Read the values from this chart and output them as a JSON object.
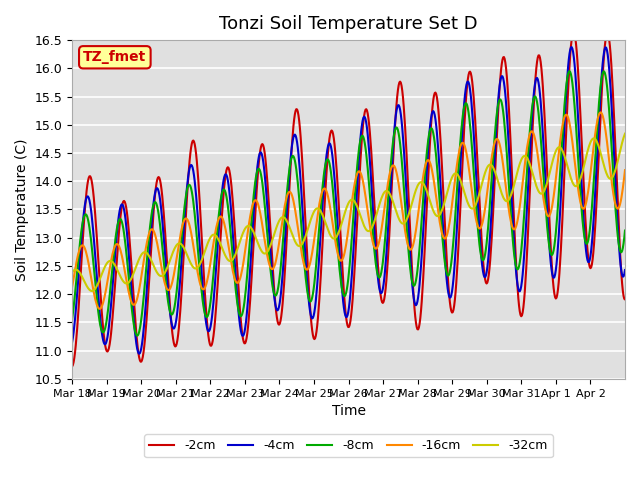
{
  "title": "Tonzi Soil Temperature Set D",
  "xlabel": "Time",
  "ylabel": "Soil Temperature (C)",
  "ylim": [
    10.5,
    16.5
  ],
  "yticks": [
    10.5,
    11.0,
    11.5,
    12.0,
    12.5,
    13.0,
    13.5,
    14.0,
    14.5,
    15.0,
    15.5,
    16.0,
    16.5
  ],
  "colors": {
    "-2cm": "#cc0000",
    "-4cm": "#0000cc",
    "-8cm": "#00aa00",
    "-16cm": "#ff8800",
    "-32cm": "#cccc00"
  },
  "legend_label": "TZ_fmet",
  "legend_bg": "#ffff99",
  "legend_edge": "#cc0000",
  "bg_color": "#e0e0e0",
  "line_width": 1.5,
  "xtick_labels": [
    "Mar 18",
    "Mar 19",
    "Mar 20",
    "Mar 21",
    "Mar 22",
    "Mar 23",
    "Mar 24",
    "Mar 25",
    "Mar 26",
    "Mar 27",
    "Mar 28",
    "Mar 29",
    "Mar 30",
    "Mar 31",
    "Apr 1",
    "Apr 2"
  ],
  "n_days": 16
}
